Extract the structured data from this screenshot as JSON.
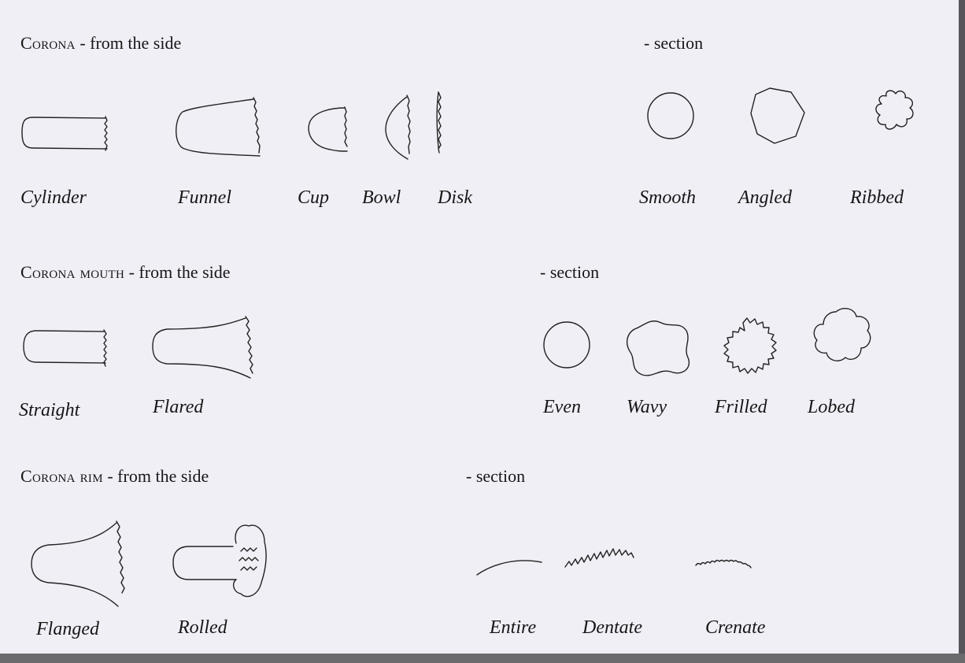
{
  "sections": [
    {
      "id": "corona",
      "title": "Corona",
      "side_caption": " - from the side",
      "section_caption": "- section",
      "side_shapes": [
        "Cylinder",
        "Funnel",
        "Cup",
        "Bowl",
        "Disk"
      ],
      "section_shapes": [
        "Smooth",
        "Angled",
        "Ribbed"
      ]
    },
    {
      "id": "mouth",
      "title": "Corona mouth",
      "side_caption": " - from the side",
      "section_caption": "- section",
      "side_shapes": [
        "Straight",
        "Flared"
      ],
      "section_shapes": [
        "Even",
        "Wavy",
        "Frilled",
        "Lobed"
      ]
    },
    {
      "id": "rim",
      "title": "Corona rim",
      "side_caption": " - from the side",
      "section_caption": "- section",
      "side_shapes": [
        "Flanged",
        "Rolled"
      ],
      "section_shapes": [
        "Entire",
        "Dentate",
        "Crenate"
      ]
    }
  ]
}
